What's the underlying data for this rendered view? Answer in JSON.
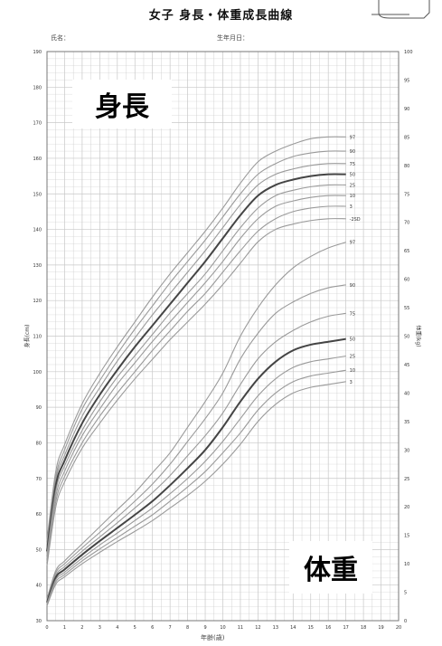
{
  "title": "女子 身長・体重成長曲線",
  "subtitle": "生年月日：",
  "name_field": "氏名：",
  "height_label": "身長",
  "weight_label": "体重",
  "left_axis_label": "身長(cm)",
  "right_axis_label": "体重(kg)",
  "xlabel": "年齢(歳)",
  "colors": {
    "grid": "#c8c8c8",
    "curve": "#9a9a9a",
    "median": "#444444",
    "text": "#333333"
  },
  "chart_data": {
    "type": "line",
    "x_ticks": [
      0,
      1,
      2,
      3,
      4,
      5,
      6,
      7,
      8,
      9,
      10,
      11,
      12,
      13,
      14,
      15,
      16,
      17,
      18,
      19,
      20
    ],
    "xlim": [
      0,
      20
    ],
    "height_axis": {
      "ylim": [
        30,
        190
      ],
      "ticks": [
        30,
        40,
        50,
        60,
        70,
        80,
        90,
        100,
        110,
        120,
        130,
        140,
        150,
        160,
        170,
        180,
        190
      ]
    },
    "weight_axis": {
      "ylim": [
        0,
        100
      ],
      "ticks": [
        0,
        5,
        10,
        15,
        20,
        25,
        30,
        35,
        40,
        45,
        50,
        55,
        60,
        65,
        70,
        75,
        80,
        85,
        90,
        95,
        100
      ]
    },
    "x": [
      0,
      0.5,
      1,
      2,
      3,
      4,
      5,
      6,
      7,
      8,
      9,
      10,
      11,
      12,
      13,
      14,
      15,
      16,
      17
    ],
    "height_series": [
      {
        "name": "97",
        "values": [
          52.5,
          72,
          79.5,
          91,
          99.5,
          107,
          114,
          121,
          127.5,
          133.5,
          139.5,
          146,
          153,
          159,
          162,
          164,
          165.5,
          166,
          166
        ],
        "median": false
      },
      {
        "name": "90",
        "values": [
          51.5,
          70.5,
          78,
          89.5,
          97.5,
          105,
          112,
          118.5,
          125,
          131,
          137,
          143.5,
          150,
          155.5,
          158.5,
          160.5,
          161.5,
          162,
          162
        ],
        "median": false
      },
      {
        "name": "75",
        "values": [
          50.5,
          69.5,
          76.5,
          87.5,
          95.5,
          103,
          109.5,
          116,
          122,
          128,
          134,
          140.5,
          147,
          152.5,
          155.5,
          157,
          158,
          158.5,
          158.5
        ],
        "median": false
      },
      {
        "name": "50",
        "values": [
          49.5,
          68,
          75,
          85.5,
          93.5,
          100.5,
          107,
          113,
          119,
          125,
          131,
          137.5,
          144,
          149.5,
          152.5,
          154,
          155,
          155.5,
          155.5
        ],
        "median": true
      },
      {
        "name": "25",
        "values": [
          48.5,
          66.5,
          73.5,
          83.5,
          91.5,
          98.5,
          104.5,
          110.5,
          116.5,
          122,
          127.5,
          134,
          140.5,
          146,
          149.5,
          151,
          152,
          152.5,
          152.5
        ],
        "median": false
      },
      {
        "name": "10",
        "values": [
          47.5,
          65,
          72,
          82,
          89.5,
          96.5,
          102.5,
          108.5,
          114,
          119.5,
          125,
          131,
          137.5,
          143,
          146.5,
          148,
          149,
          149.5,
          149.5
        ],
        "median": false
      },
      {
        "name": "3",
        "values": [
          46.5,
          63.5,
          70.5,
          80,
          87.5,
          94,
          100,
          106,
          111.5,
          117,
          122,
          128,
          134,
          139.5,
          143,
          145,
          146,
          146.5,
          146.5
        ],
        "median": false
      },
      {
        "name": "-2SD",
        "values": [
          45.5,
          62,
          69,
          78.5,
          85.5,
          92,
          98,
          103.5,
          109,
          114,
          119,
          124.5,
          130.5,
          136.5,
          140,
          141.5,
          142.5,
          143,
          143
        ],
        "median": false
      }
    ],
    "weight_series": [
      {
        "name": "97",
        "values": [
          3.8,
          8.8,
          10.5,
          13.5,
          16.5,
          19.5,
          22.5,
          26,
          29.5,
          34,
          38.5,
          43.5,
          50,
          55,
          59,
          62,
          64,
          65.5,
          66.5
        ],
        "median": false
      },
      {
        "name": "90",
        "values": [
          3.6,
          8.4,
          10,
          12.8,
          15.5,
          18.2,
          21,
          24,
          27.5,
          31.5,
          35.5,
          40,
          46,
          50.5,
          54,
          56,
          57.5,
          58.5,
          59
        ],
        "median": false
      },
      {
        "name": "75",
        "values": [
          3.4,
          8,
          9.5,
          12.2,
          14.7,
          17.2,
          19.8,
          22.5,
          25.5,
          29,
          32.5,
          36.5,
          41.5,
          46,
          49,
          51,
          52.5,
          53.5,
          54
        ],
        "median": false
      },
      {
        "name": "50",
        "values": [
          3.2,
          7.6,
          9,
          11.6,
          14,
          16.3,
          18.6,
          21,
          23.8,
          26.8,
          30,
          34,
          38.5,
          42.5,
          45.5,
          47.5,
          48.5,
          49,
          49.5
        ],
        "median": true
      },
      {
        "name": "25",
        "values": [
          3,
          7.2,
          8.5,
          11,
          13.3,
          15.4,
          17.6,
          19.8,
          22.3,
          25,
          28,
          31.5,
          35.5,
          39.5,
          42.5,
          44.5,
          45.5,
          46,
          46.5
        ],
        "median": false
      },
      {
        "name": "10",
        "values": [
          2.8,
          6.8,
          8.1,
          10.5,
          12.6,
          14.6,
          16.6,
          18.6,
          21,
          23.5,
          26.2,
          29.5,
          33,
          37,
          40,
          42,
          43,
          43.5,
          44
        ],
        "median": false
      },
      {
        "name": "3",
        "values": [
          2.6,
          6.4,
          7.7,
          10,
          12,
          13.9,
          15.7,
          17.6,
          19.8,
          22,
          24.5,
          27.5,
          31,
          35,
          38,
          40,
          41,
          41.5,
          42
        ],
        "median": false
      }
    ]
  }
}
